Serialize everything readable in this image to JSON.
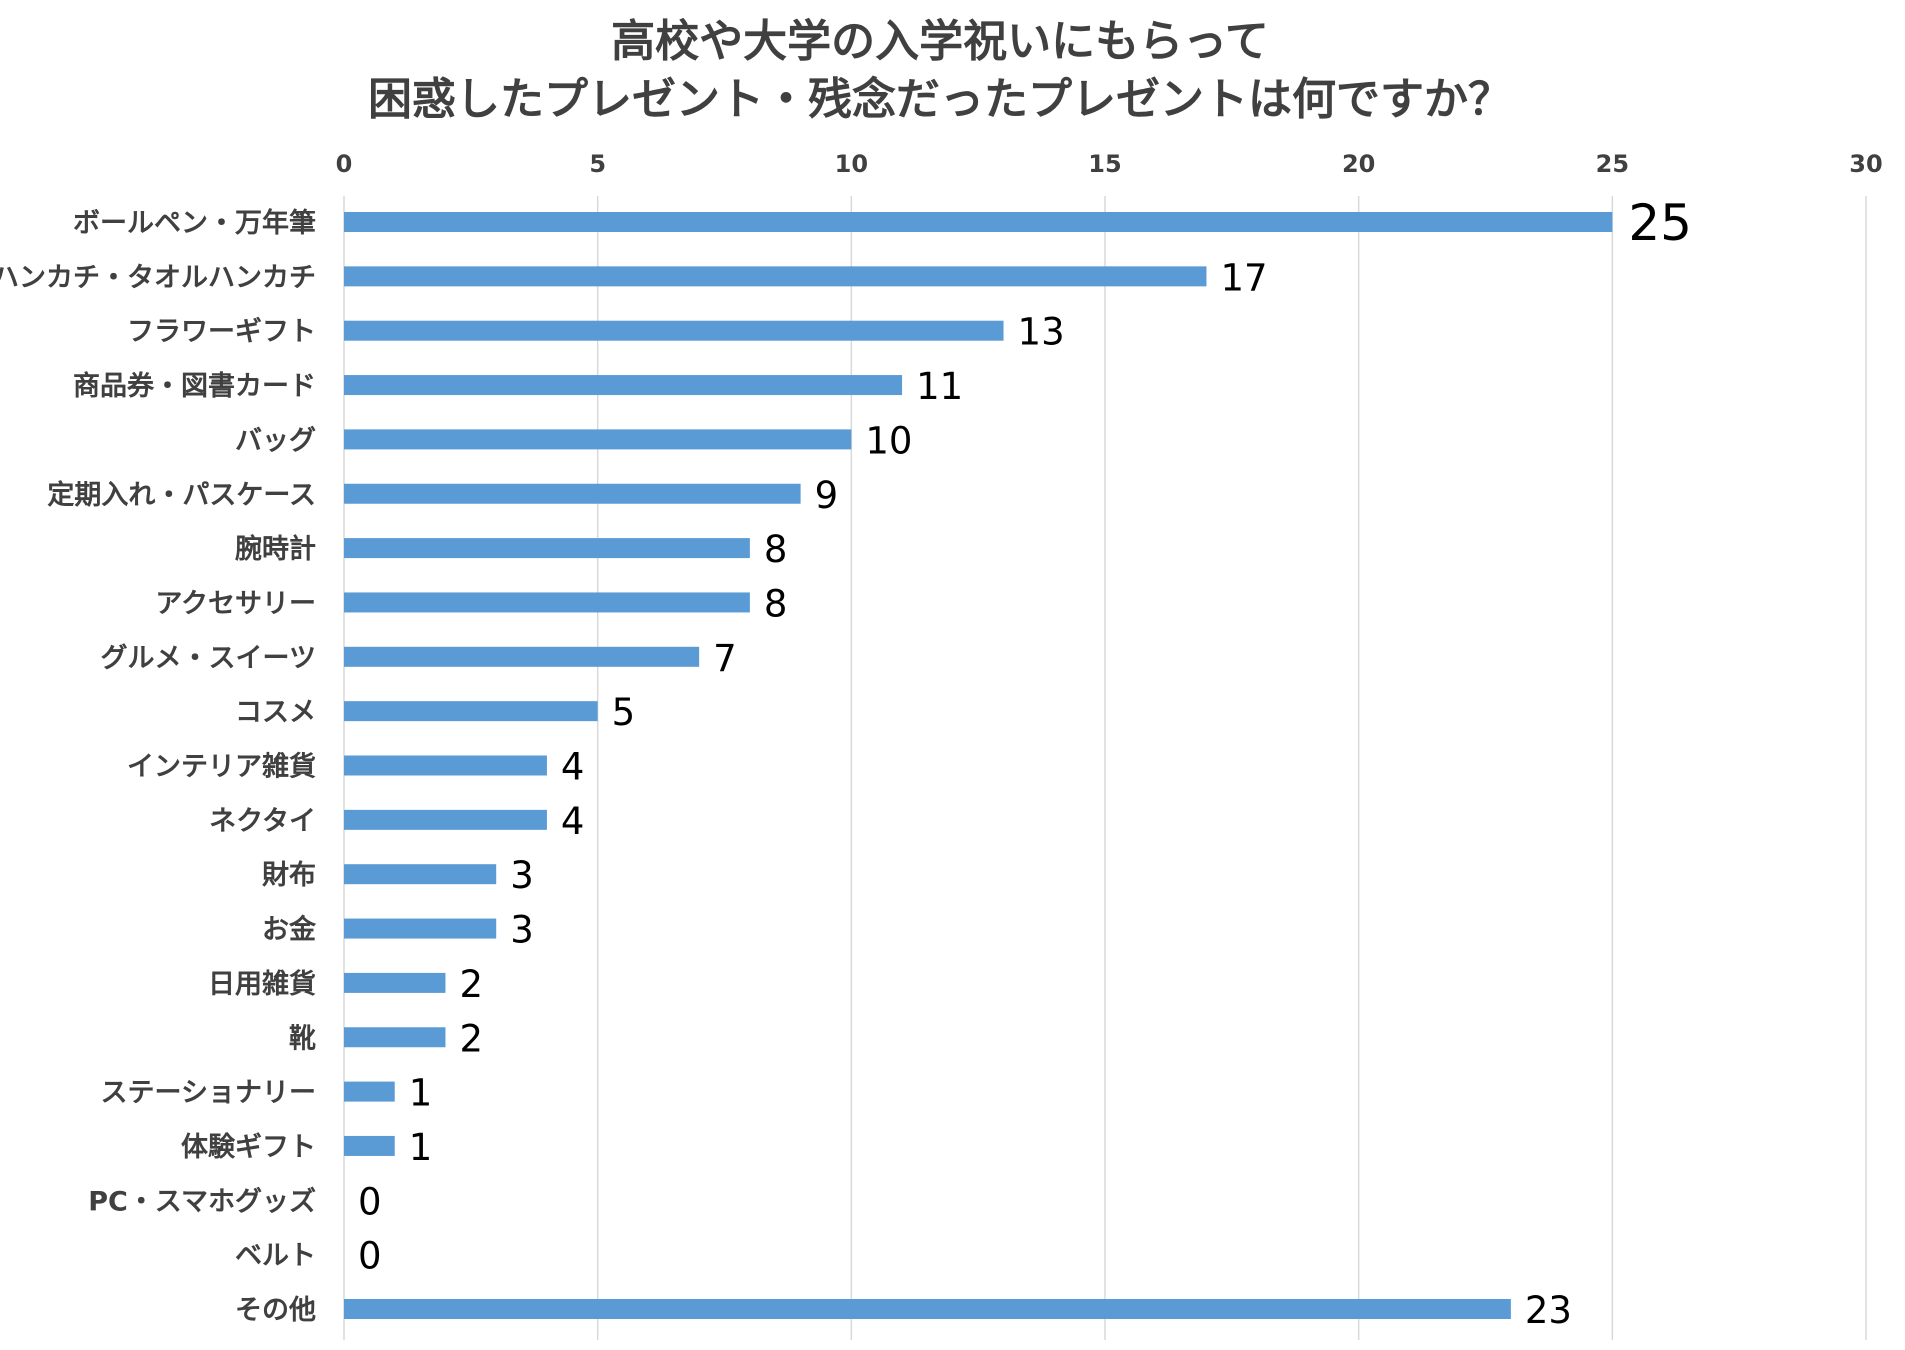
{
  "chart_data": {
    "type": "bar",
    "orientation": "horizontal",
    "title_lines": [
      "高校や大学の入学祝いにもらって",
      "困惑したプレゼント・残念だったプレゼントは何ですか？"
    ],
    "categories": [
      "ボールペン・万年筆",
      "ハンカチ・タオルハンカチ",
      "フラワーギフト",
      "商品券・図書カード",
      "バッグ",
      "定期入れ・パスケース",
      "腕時計",
      "アクセサリー",
      "グルメ・スイーツ",
      "コスメ",
      "インテリア雑貨",
      "ネクタイ",
      "財布",
      "お金",
      "日用雑貨",
      "靴",
      "ステーショナリー",
      "体験ギフト",
      "PC・スマホグッズ",
      "ベルト",
      "その他"
    ],
    "values": [
      25,
      17,
      13,
      11,
      10,
      9,
      8,
      8,
      7,
      5,
      4,
      4,
      3,
      3,
      2,
      2,
      1,
      1,
      0,
      0,
      23
    ],
    "xlim": [
      0,
      30
    ],
    "x_ticks": [
      "0",
      "5",
      "10",
      "15",
      "20",
      "25",
      "30"
    ],
    "x_axis_position": "top",
    "grid": true,
    "legend": "none",
    "bar_color": "#5b9bd5"
  }
}
